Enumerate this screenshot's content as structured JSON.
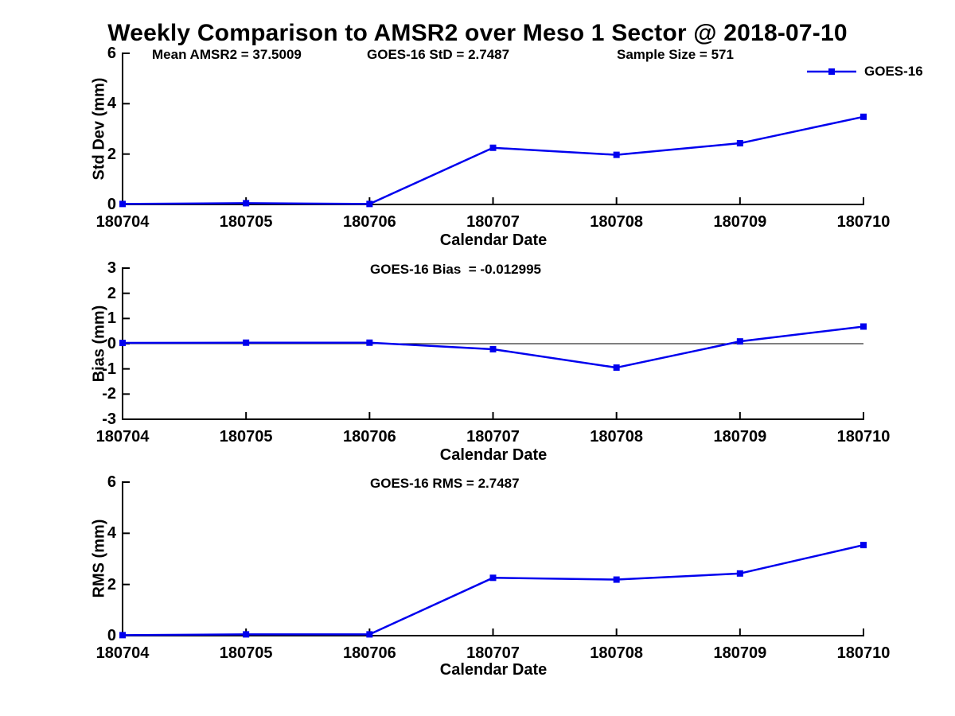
{
  "figure_title": "Weekly Comparison to AMSR2 over Meso 1 Sector @ 2018-07-10",
  "legend": {
    "label": "GOES-16"
  },
  "colors": {
    "line": "#0000ee",
    "axis": "#000000",
    "text": "#000000",
    "background": "#ffffff"
  },
  "categories": [
    "180704",
    "180705",
    "180706",
    "180707",
    "180708",
    "180709",
    "180710"
  ],
  "chart_data": [
    {
      "type": "line",
      "title": "",
      "xlabel": "Calendar Date",
      "ylabel": "Std Dev (mm)",
      "ylim": [
        0,
        6
      ],
      "yticks": [
        0,
        2,
        4,
        6
      ],
      "categories": [
        "180704",
        "180705",
        "180706",
        "180707",
        "180708",
        "180709",
        "180710"
      ],
      "series": [
        {
          "name": "GOES-16",
          "values": [
            0.02,
            0.05,
            0.02,
            2.25,
            1.97,
            2.43,
            3.48
          ]
        }
      ],
      "annotations": [
        "Mean AMSR2 = 37.5009",
        "GOES-16 StD = 2.7487",
        "Sample Size = 571"
      ],
      "legend_entries": [
        "GOES-16"
      ],
      "legend_position": "top-right",
      "grid": false,
      "zero_line": false
    },
    {
      "type": "line",
      "title": "",
      "xlabel": "Calendar Date",
      "ylabel": "Bias (mm)",
      "ylim": [
        -3,
        3
      ],
      "yticks": [
        3,
        2,
        1,
        0,
        -1,
        -2,
        -3
      ],
      "categories": [
        "180704",
        "180705",
        "180706",
        "180707",
        "180708",
        "180709",
        "180710"
      ],
      "series": [
        {
          "name": "GOES-16",
          "values": [
            0.03,
            0.04,
            0.04,
            -0.22,
            -0.95,
            0.09,
            0.68
          ]
        }
      ],
      "annotations": [
        "GOES-16 Bias  = -0.012995"
      ],
      "legend_entries": [],
      "grid": false,
      "zero_line": true
    },
    {
      "type": "line",
      "title": "",
      "xlabel": "Calendar Date",
      "ylabel": "RMS (mm)",
      "ylim": [
        0,
        6
      ],
      "yticks": [
        0,
        2,
        4,
        6
      ],
      "categories": [
        "180704",
        "180705",
        "180706",
        "180707",
        "180708",
        "180709",
        "180710"
      ],
      "series": [
        {
          "name": "GOES-16",
          "values": [
            0.02,
            0.05,
            0.05,
            2.26,
            2.19,
            2.43,
            3.54
          ]
        }
      ],
      "annotations": [
        "GOES-16 RMS = 2.7487"
      ],
      "legend_entries": [],
      "grid": false,
      "zero_line": false
    }
  ]
}
